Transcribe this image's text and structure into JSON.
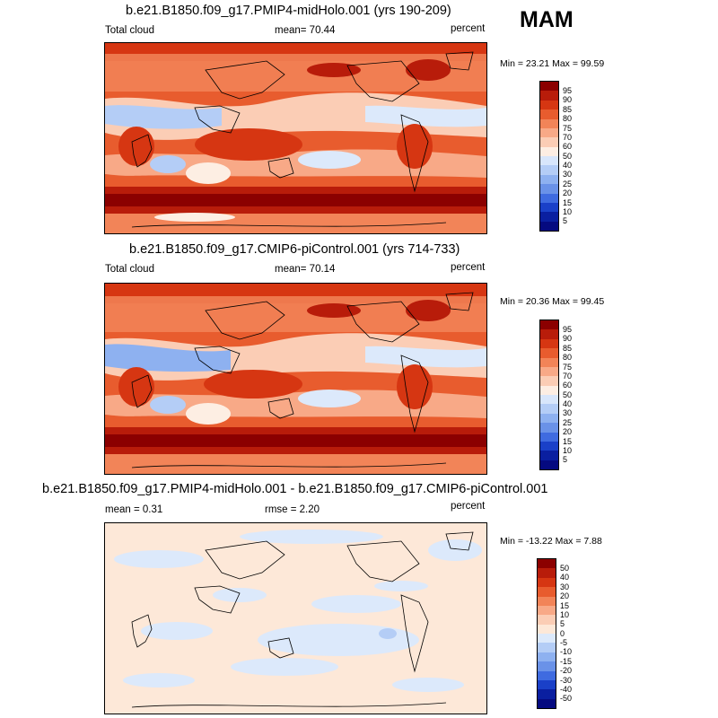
{
  "season": "MAM",
  "panels": [
    {
      "title": "b.e21.B1850.f09_g17.PMIP4-midHolo.001 (yrs 190-209)",
      "variable": "Total cloud",
      "stat1": "mean=  70.44",
      "stat2": "",
      "units": "percent",
      "minmax": "Min =  23.21 Max =  99.59",
      "colorbar_labels": [
        "95",
        "90",
        "85",
        "80",
        "75",
        "70",
        "60",
        "50",
        "40",
        "30",
        "25",
        "20",
        "15",
        "10",
        "5"
      ]
    },
    {
      "title": "b.e21.B1850.f09_g17.CMIP6-piControl.001 (yrs 714-733)",
      "variable": "Total cloud",
      "stat1": "mean=  70.14",
      "stat2": "",
      "units": "percent",
      "minmax": "Min =  20.36 Max =  99.45",
      "colorbar_labels": [
        "95",
        "90",
        "85",
        "80",
        "75",
        "70",
        "60",
        "50",
        "40",
        "30",
        "25",
        "20",
        "15",
        "10",
        "5"
      ]
    },
    {
      "title": "b.e21.B1850.f09_g17.PMIP4-midHolo.001 - b.e21.B1850.f09_g17.CMIP6-piControl.001",
      "variable": "",
      "stat1": "mean =   0.31",
      "stat2": "rmse =   2.20",
      "units": "percent",
      "minmax": "Min = -13.22 Max =   7.88",
      "colorbar_labels": [
        "50",
        "40",
        "30",
        "20",
        "15",
        "10",
        "5",
        "0",
        "-5",
        "-10",
        "-15",
        "-20",
        "-30",
        "-40",
        "-50"
      ]
    }
  ],
  "colorbar_colors": [
    "#8b0000",
    "#b81c0a",
    "#d63612",
    "#e85c2e",
    "#f28458",
    "#f8a987",
    "#fbcdb5",
    "#fdeee3",
    "#d8e6fb",
    "#b4cdf6",
    "#8eb1f0",
    "#6a92e8",
    "#3f6be0",
    "#1a40c8",
    "#0a1fa0",
    "#050a80"
  ],
  "diff_colors": [
    "#8b0000",
    "#b81c0a",
    "#d63612",
    "#e85c2e",
    "#f28458",
    "#f8a987",
    "#fbcdb5",
    "#fde8d8",
    "#dce9fb",
    "#b4cdf6",
    "#8eb1f0",
    "#6a92e8",
    "#3f6be0",
    "#1a40c8",
    "#0a1fa0",
    "#050a80"
  ]
}
